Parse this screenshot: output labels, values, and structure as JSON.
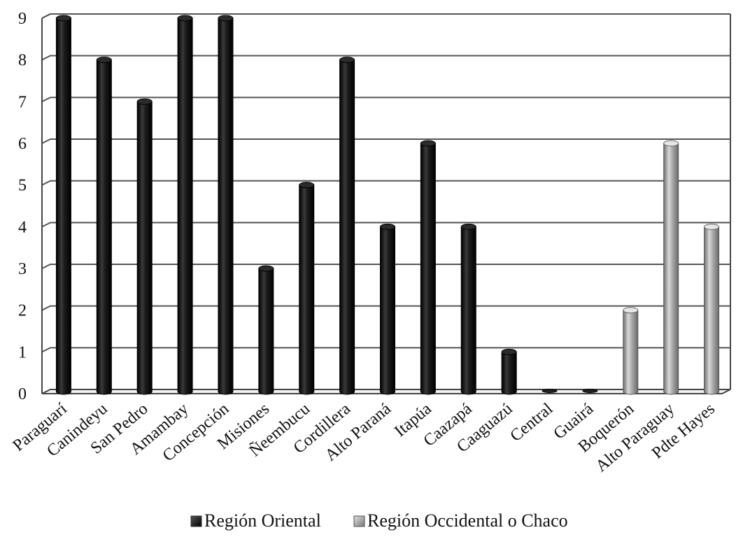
{
  "chart_data": {
    "type": "bar",
    "title": "",
    "xlabel": "",
    "ylabel": "",
    "ylim": [
      0,
      9
    ],
    "yticks": [
      0,
      1,
      2,
      3,
      4,
      5,
      6,
      7,
      8,
      9
    ],
    "grid": true,
    "legend_position": "bottom",
    "categories": [
      "Paraguarí",
      "Canindeyu",
      "San Pedro",
      "Amambay",
      "Concepción",
      "Misiones",
      "Ñeembucu",
      "Cordillera",
      "Alto Paraná",
      "Itapúa",
      "Caazapá",
      "Caaguazú",
      "Central",
      "Guairá",
      "Boquerón",
      "Alto Paraguay",
      "Pdte Hayes"
    ],
    "values": [
      9,
      8,
      7,
      9,
      9,
      3,
      5,
      8,
      4,
      6,
      4,
      1,
      0,
      0,
      2,
      6,
      4
    ],
    "groups": [
      "Región Oriental",
      "Región Oriental",
      "Región Oriental",
      "Región Oriental",
      "Región Oriental",
      "Región Oriental",
      "Región Oriental",
      "Región Oriental",
      "Región Oriental",
      "Región Oriental",
      "Región Oriental",
      "Región Oriental",
      "Región Oriental",
      "Región Oriental",
      "Región Occidental o Chaco",
      "Región Occidental o Chaco",
      "Región Occidental o Chaco"
    ],
    "legend": [
      {
        "name": "Región Oriental",
        "color": "#1a1a1a"
      },
      {
        "name": "Región Occidental o Chaco",
        "color": "#9a9a9a"
      }
    ]
  }
}
